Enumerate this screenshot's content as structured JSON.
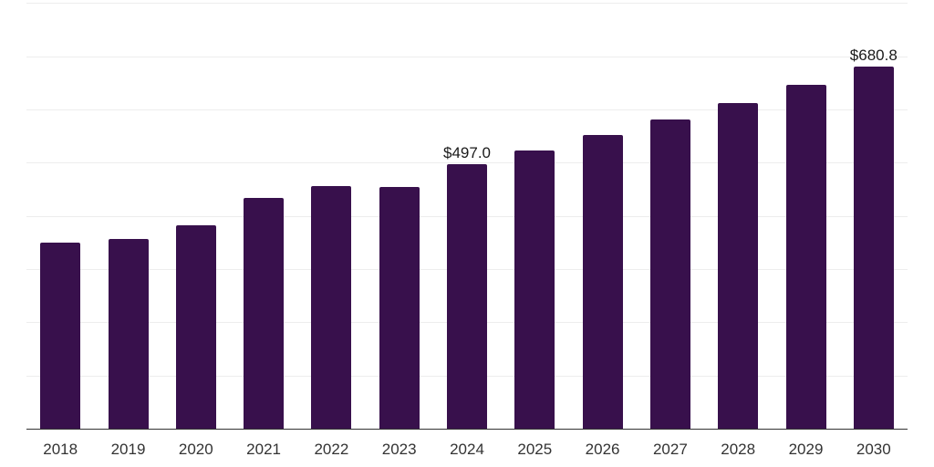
{
  "chart_data": {
    "type": "bar",
    "title": "",
    "xlabel": "",
    "ylabel": "",
    "categories": [
      "2018",
      "2019",
      "2020",
      "2021",
      "2022",
      "2023",
      "2024",
      "2025",
      "2026",
      "2027",
      "2028",
      "2029",
      "2030"
    ],
    "values": [
      349.4,
      356.9,
      383.0,
      434.4,
      455.6,
      454.5,
      497.0,
      523.7,
      551.8,
      581.5,
      612.9,
      645.8,
      680.8
    ],
    "data_labels": [
      "",
      "",
      "",
      "",
      "",
      "",
      "$497.0",
      "",
      "",
      "",
      "",
      "",
      "$680.8"
    ],
    "ylim": [
      0,
      800
    ],
    "gridline_step": 100,
    "grid": "horizontal",
    "y_tick_labels_visible": false,
    "legend_position": "none",
    "colors": {
      "bar": "#38104c",
      "gridline": "#ededed",
      "axis_line": "#333333",
      "x_tick_label": "#333333",
      "data_label": "#1a1a1a",
      "background": "#ffffff"
    }
  }
}
